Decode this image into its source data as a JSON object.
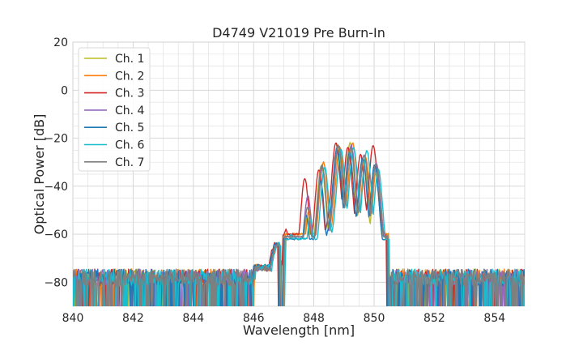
{
  "chart_data": {
    "type": "line",
    "title": "D4749 V21019 Pre Burn-In",
    "xlabel": "Wavelength [nm]",
    "ylabel": "Optical Power [dB]",
    "xlim": [
      840,
      855
    ],
    "ylim": [
      -90,
      20
    ],
    "xticks": [
      840,
      842,
      844,
      846,
      848,
      850,
      852,
      854
    ],
    "yticks": [
      20,
      0,
      -20,
      -40,
      -60,
      -80
    ],
    "x_minor_step": 0.5,
    "y_minor_step": 5,
    "grid": true,
    "legend_position": "top-left",
    "noise_floor_dB": -78,
    "series": [
      {
        "name": "Ch. 1",
        "color": "#bcbd22",
        "shift": 0.0,
        "peaks": [
          [
            847.15,
            -60
          ],
          [
            847.78,
            -53
          ],
          [
            848.25,
            -31
          ],
          [
            848.8,
            -23
          ],
          [
            849.2,
            -22
          ],
          [
            849.65,
            -30
          ],
          [
            850.05,
            -35
          ]
        ]
      },
      {
        "name": "Ch. 2",
        "color": "#ff7f0e",
        "shift": 0.04,
        "peaks": [
          [
            847.15,
            -60
          ],
          [
            847.8,
            -50
          ],
          [
            848.28,
            -30
          ],
          [
            848.82,
            -24
          ],
          [
            849.25,
            -22
          ],
          [
            849.68,
            -28
          ],
          [
            850.05,
            -32
          ]
        ]
      },
      {
        "name": "Ch. 3",
        "color": "#d62728",
        "shift": -0.05,
        "peaks": [
          [
            847.12,
            -58
          ],
          [
            847.75,
            -37
          ],
          [
            848.22,
            -33
          ],
          [
            848.78,
            -22
          ],
          [
            849.18,
            -24
          ],
          [
            849.6,
            -27
          ],
          [
            850.02,
            -23
          ]
        ]
      },
      {
        "name": "Ch. 4",
        "color": "#9467bd",
        "shift": 0.02,
        "peaks": [
          [
            847.15,
            -61
          ],
          [
            847.78,
            -44
          ],
          [
            848.26,
            -32
          ],
          [
            848.8,
            -23
          ],
          [
            849.22,
            -23
          ],
          [
            849.65,
            -27
          ],
          [
            850.05,
            -30
          ]
        ]
      },
      {
        "name": "Ch. 5",
        "color": "#1f77b4",
        "shift": -0.02,
        "peaks": [
          [
            847.15,
            -62
          ],
          [
            847.76,
            -52
          ],
          [
            848.24,
            -38
          ],
          [
            848.79,
            -24
          ],
          [
            849.2,
            -26
          ],
          [
            849.64,
            -28
          ],
          [
            850.04,
            -31
          ]
        ]
      },
      {
        "name": "Ch. 6",
        "color": "#17becf",
        "shift": 0.06,
        "peaks": [
          [
            847.18,
            -60
          ],
          [
            847.82,
            -53
          ],
          [
            848.3,
            -32
          ],
          [
            848.84,
            -25
          ],
          [
            849.26,
            -24
          ],
          [
            849.7,
            -25
          ],
          [
            850.08,
            -33
          ]
        ]
      },
      {
        "name": "Ch. 7",
        "color": "#7f7f7f",
        "shift": 0.01,
        "peaks": [
          [
            847.15,
            -61
          ],
          [
            847.78,
            -49
          ],
          [
            848.26,
            -31
          ],
          [
            848.8,
            -23
          ],
          [
            849.22,
            -24
          ],
          [
            849.66,
            -27
          ],
          [
            850.05,
            -31
          ]
        ]
      }
    ]
  }
}
